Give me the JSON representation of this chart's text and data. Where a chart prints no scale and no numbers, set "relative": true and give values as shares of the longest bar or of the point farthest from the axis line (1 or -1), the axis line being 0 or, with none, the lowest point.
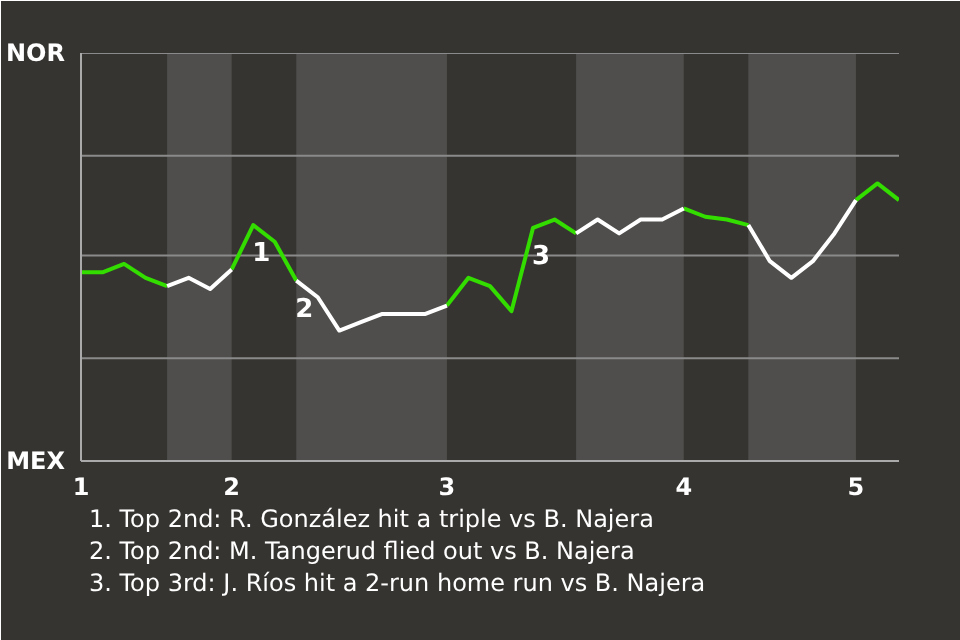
{
  "chart_data": {
    "type": "line",
    "relative": true,
    "categories": [
      "1",
      null,
      null,
      null,
      null,
      null,
      null,
      "2",
      null,
      null,
      null,
      null,
      null,
      null,
      null,
      null,
      null,
      "3",
      null,
      null,
      null,
      null,
      null,
      null,
      null,
      null,
      null,
      null,
      "4",
      null,
      null,
      null,
      null,
      null,
      null,
      null,
      "5",
      null,
      null
    ],
    "series": [
      {
        "color": "#33dd00",
        "values": [
          0.68,
          0.68,
          0.71,
          0.66,
          0.63,
          null,
          null,
          0.69,
          0.85,
          0.79,
          0.65,
          null,
          null,
          null,
          null,
          null,
          null,
          0.56,
          0.66,
          0.63,
          0.54,
          0.84,
          0.87,
          0.82,
          null,
          null,
          null,
          null,
          0.91,
          0.88,
          0.87,
          0.85,
          null,
          null,
          null,
          null,
          0.94,
          1,
          0.94
        ]
      },
      {
        "color": "#ffffff",
        "values": [
          null,
          null,
          null,
          null,
          0.63,
          0.66,
          0.62,
          0.69,
          null,
          null,
          0.65,
          0.59,
          0.47,
          0.5,
          0.53,
          0.53,
          0.53,
          0.56,
          null,
          null,
          null,
          null,
          null,
          0.82,
          0.87,
          0.82,
          0.87,
          0.87,
          0.91,
          null,
          null,
          0.85,
          0.72,
          0.66,
          0.72,
          0.82,
          0.94,
          null,
          null
        ]
      }
    ],
    "marker": "none",
    "line_style": "solid",
    "ref_lines": [
      {
        "axis": "y",
        "value": 0.37,
        "color": "#8a8a8a"
      },
      {
        "axis": "y",
        "value": 0.74,
        "color": "#8a8a8a"
      },
      {
        "axis": "y",
        "value": 1.1,
        "color": "#8a8a8a"
      }
    ],
    "annotations": [
      "NOR",
      "MEX",
      {
        "text": "1",
        "y": 0.85
      },
      {
        "text": "2",
        "y": 0.65
      },
      {
        "text": "3",
        "y": 0.84
      },
      "1. Top 2nd: R. González hit a triple vs B. Najera",
      "2. Top 2nd: M. Tangerud flied out vs B. Najera",
      "3. Top 3rd: J. Ríos hit a 2-run home run vs B. Najera"
    ]
  }
}
